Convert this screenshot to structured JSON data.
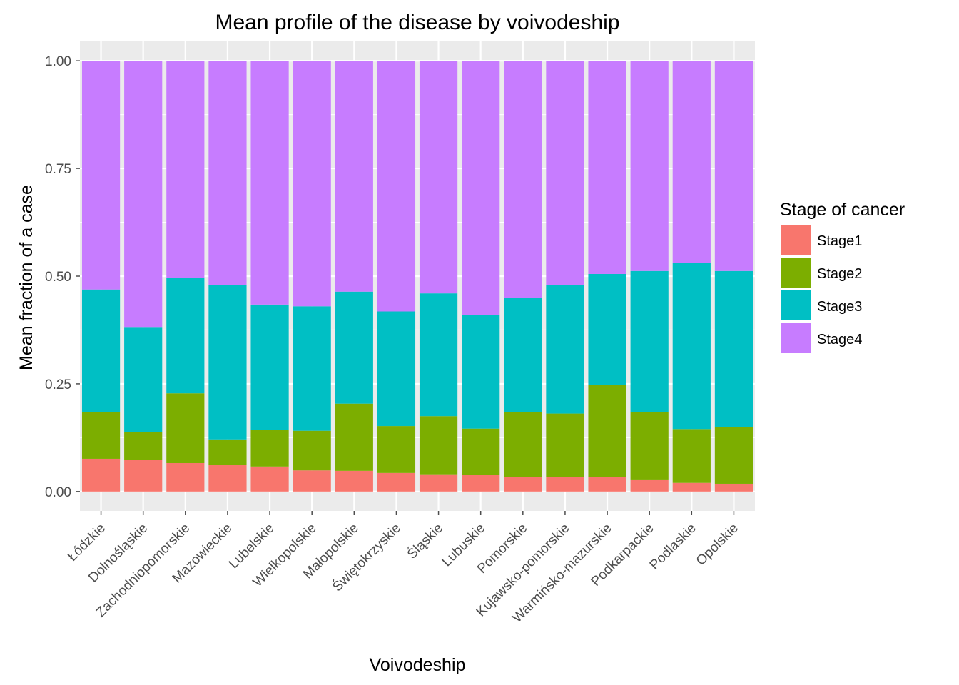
{
  "chart_data": {
    "type": "bar",
    "stacked": true,
    "title": "Mean profile of the disease by voivodeship",
    "xlabel": "Voivodeship",
    "ylabel": "Mean fraction of a case",
    "ylim": [
      0,
      1
    ],
    "y_ticks": [
      "0.00",
      "0.25",
      "0.50",
      "0.75",
      "1.00"
    ],
    "y_tick_values": [
      0,
      0.25,
      0.5,
      0.75,
      1.0
    ],
    "grid": true,
    "legend": {
      "title": "Stage of cancer",
      "position": "right"
    },
    "categories": [
      "Łódzkie",
      "Dolnośląskie",
      "Zachodniopomorskie",
      "Mazowieckie",
      "Lubelskie",
      "Wielkopolskie",
      "Małopolskie",
      "Świętokrzyskie",
      "Śląskie",
      "Lubuskie",
      "Pomorskie",
      "Kujawsko-pomorskie",
      "Warmińsko-mazurskie",
      "Podkarpackie",
      "Podlaskie",
      "Opolskie"
    ],
    "series": [
      {
        "name": "Stage1",
        "color": "#F8766D",
        "values": [
          0.076,
          0.074,
          0.066,
          0.061,
          0.058,
          0.049,
          0.048,
          0.043,
          0.04,
          0.039,
          0.034,
          0.033,
          0.033,
          0.028,
          0.02,
          0.018
        ]
      },
      {
        "name": "Stage2",
        "color": "#7CAE00",
        "values": [
          0.108,
          0.064,
          0.162,
          0.06,
          0.085,
          0.092,
          0.156,
          0.109,
          0.135,
          0.107,
          0.15,
          0.148,
          0.215,
          0.157,
          0.125,
          0.132
        ]
      },
      {
        "name": "Stage3",
        "color": "#00BFC4",
        "values": [
          0.285,
          0.244,
          0.268,
          0.359,
          0.291,
          0.289,
          0.26,
          0.266,
          0.285,
          0.263,
          0.265,
          0.298,
          0.257,
          0.327,
          0.386,
          0.362
        ]
      },
      {
        "name": "Stage4",
        "color": "#C77CFF",
        "values": [
          0.531,
          0.618,
          0.504,
          0.52,
          0.566,
          0.57,
          0.536,
          0.582,
          0.54,
          0.591,
          0.551,
          0.521,
          0.495,
          0.488,
          0.469,
          0.488
        ]
      }
    ],
    "colors": {
      "panel": "#EBEBEB",
      "grid": "#FFFFFF",
      "tick": "#4D4D4D"
    }
  }
}
